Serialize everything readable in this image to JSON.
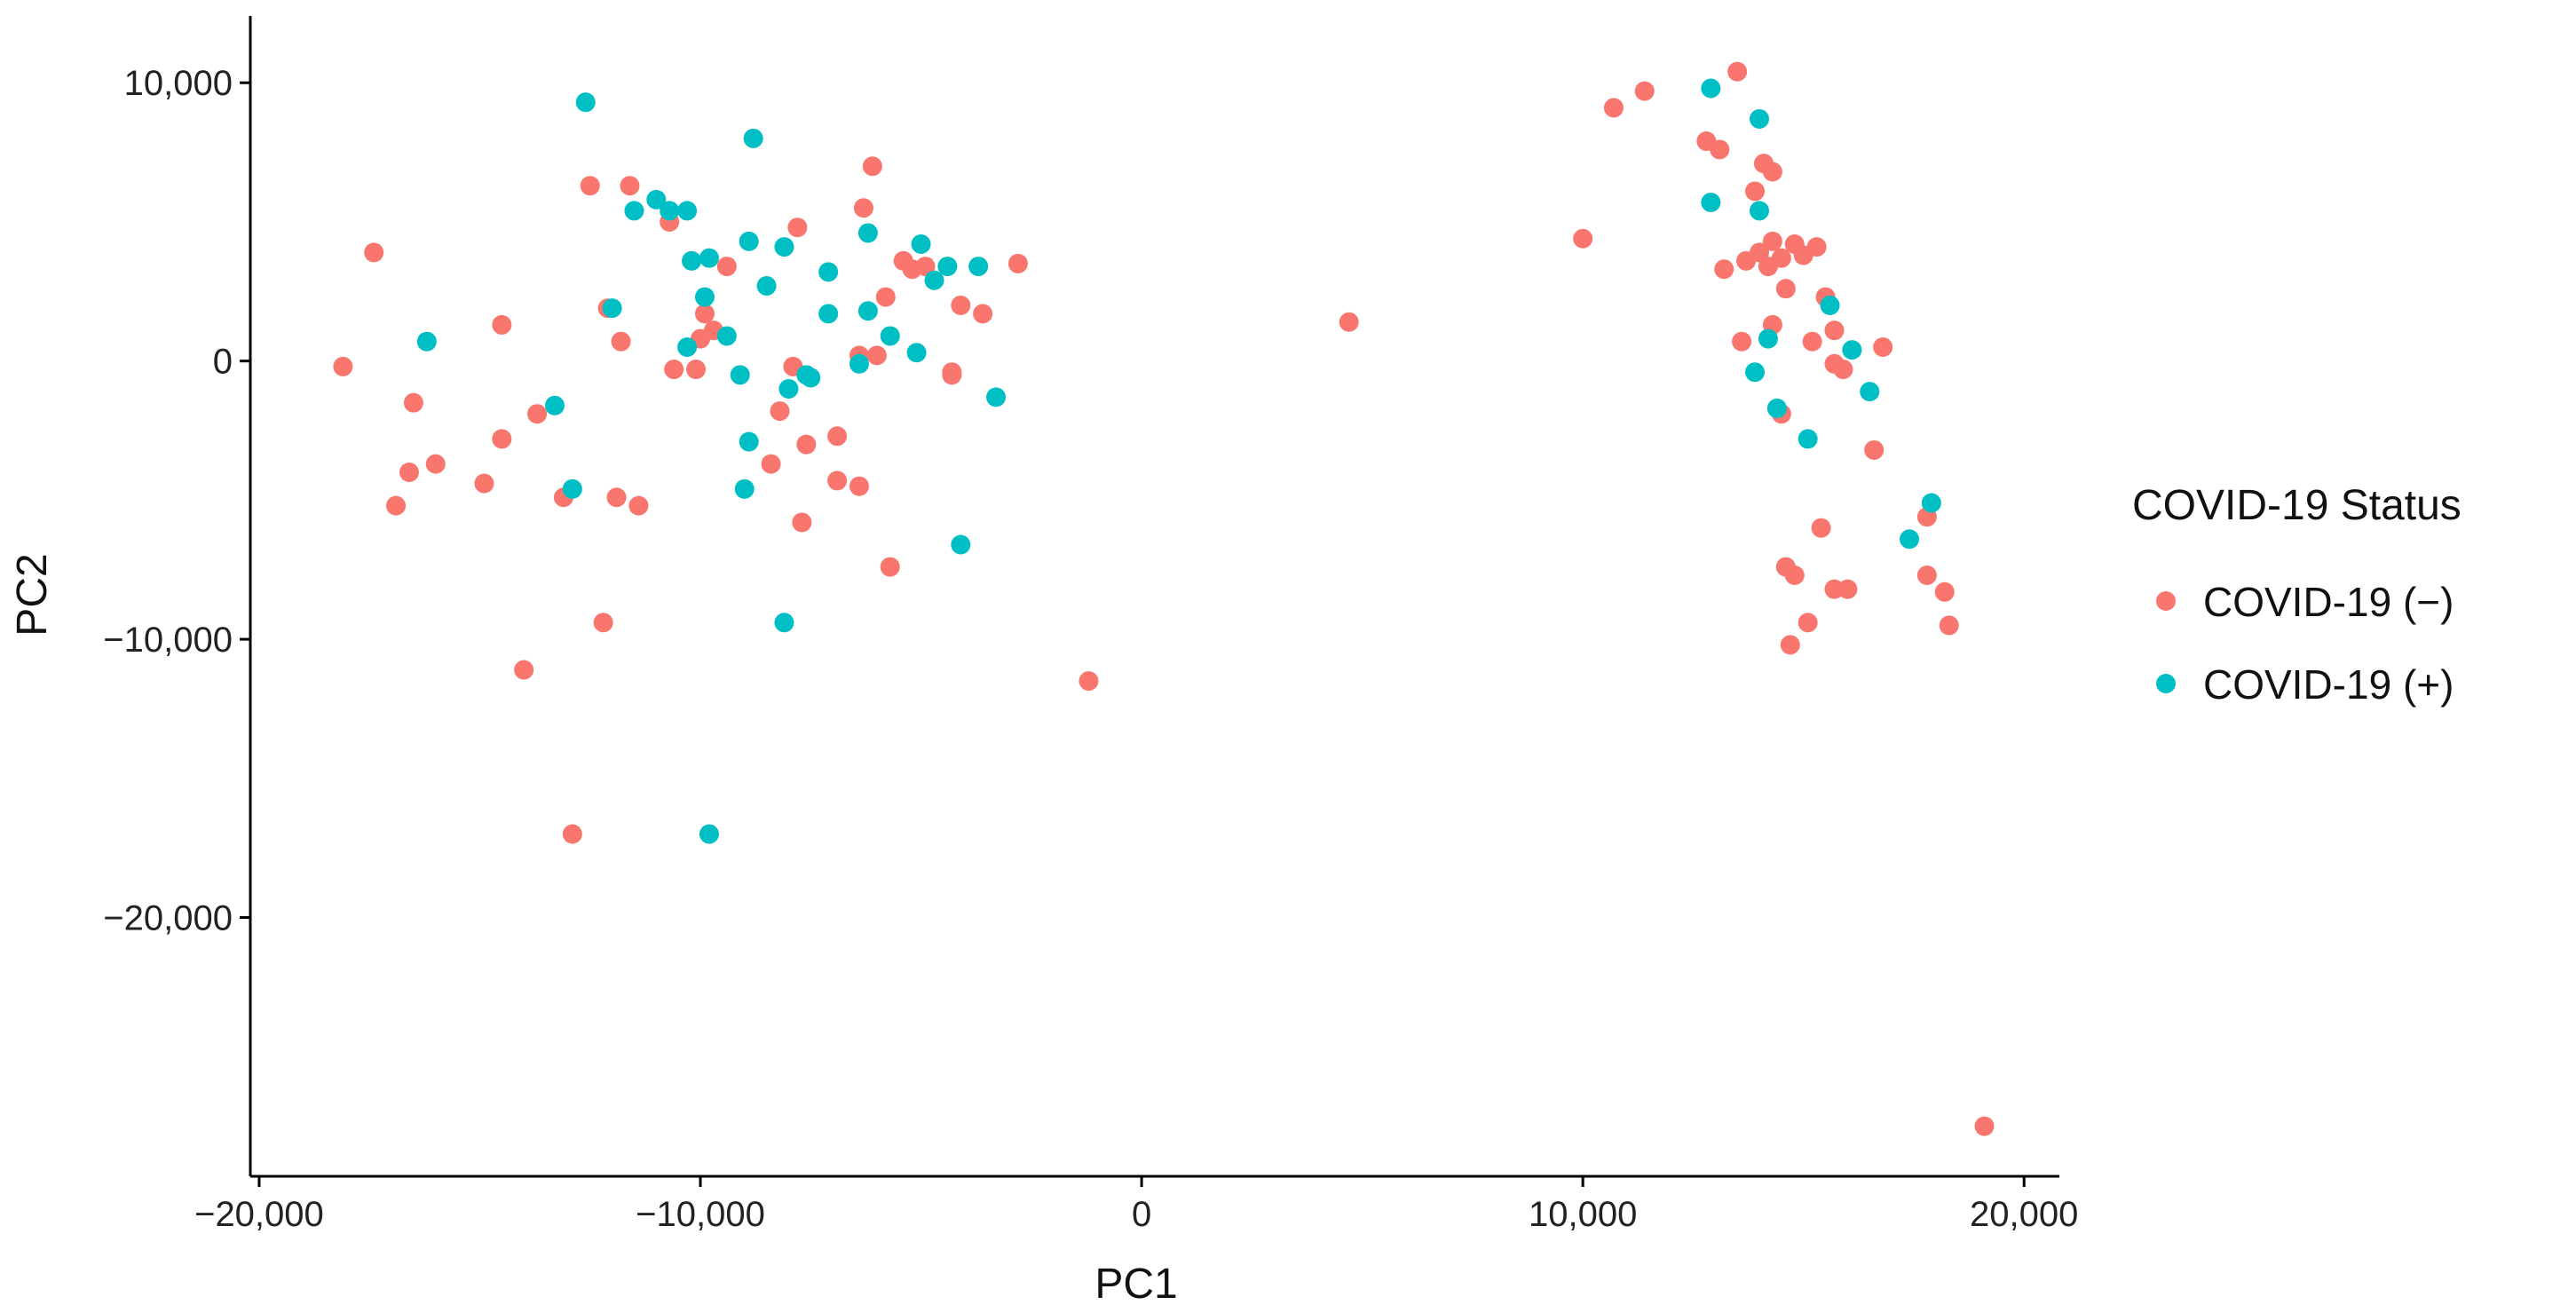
{
  "chart_data": {
    "type": "scatter",
    "xlabel": "PC1",
    "ylabel": "PC2",
    "xlim": [
      -20200,
      20800
    ],
    "ylim": [
      -29300,
      12400
    ],
    "x_ticks": [
      -20000,
      -10000,
      0,
      10000,
      20000
    ],
    "x_tick_labels": [
      "−20,000",
      "−10,000",
      "0",
      "10,000",
      "20,000"
    ],
    "y_ticks": [
      10000,
      0,
      -10000,
      -20000
    ],
    "y_tick_labels": [
      "10,000",
      "0",
      "−10,000",
      "−20,000"
    ],
    "grid": false,
    "legend": {
      "title": "COVID-19 Status",
      "position": "right"
    },
    "series": [
      {
        "name": "COVID-19 (−)",
        "color": "#F8766D",
        "points": [
          [
            -18100,
            -200
          ],
          [
            -17400,
            3900
          ],
          [
            -16500,
            -1500
          ],
          [
            -16900,
            -5200
          ],
          [
            -16600,
            -4000
          ],
          [
            -16000,
            -3700
          ],
          [
            -14900,
            -4400
          ],
          [
            -14500,
            1300
          ],
          [
            -14500,
            -2800
          ],
          [
            -14000,
            -11100
          ],
          [
            -13700,
            -1900
          ],
          [
            -13100,
            -4900
          ],
          [
            -12900,
            -17000
          ],
          [
            -12500,
            6300
          ],
          [
            -12200,
            -9400
          ],
          [
            -12100,
            1900
          ],
          [
            -11900,
            -4900
          ],
          [
            -11800,
            700
          ],
          [
            -11600,
            6300
          ],
          [
            -11400,
            -5200
          ],
          [
            -10700,
            5000
          ],
          [
            -10600,
            -300
          ],
          [
            -10100,
            -300
          ],
          [
            -10000,
            800
          ],
          [
            -9900,
            1700
          ],
          [
            -9700,
            1100
          ],
          [
            -9400,
            3400
          ],
          [
            -8400,
            -3700
          ],
          [
            -8200,
            -1800
          ],
          [
            -7900,
            -200
          ],
          [
            -7800,
            4800
          ],
          [
            -7700,
            -5800
          ],
          [
            -7600,
            -3000
          ],
          [
            -6900,
            -2700
          ],
          [
            -6900,
            -4300
          ],
          [
            -6400,
            -4500
          ],
          [
            -6400,
            200
          ],
          [
            -6300,
            5500
          ],
          [
            -6100,
            7000
          ],
          [
            -6000,
            200
          ],
          [
            -5800,
            2300
          ],
          [
            -5700,
            -7400
          ],
          [
            -5400,
            3600
          ],
          [
            -5200,
            3300
          ],
          [
            -4900,
            3400
          ],
          [
            -4300,
            -400
          ],
          [
            -4300,
            -500
          ],
          [
            -4100,
            2000
          ],
          [
            -3600,
            1700
          ],
          [
            -2800,
            3500
          ],
          [
            -1200,
            -11500
          ],
          [
            4700,
            1400
          ],
          [
            10000,
            4400
          ],
          [
            10700,
            9100
          ],
          [
            11400,
            9700
          ],
          [
            12800,
            7900
          ],
          [
            13100,
            7600
          ],
          [
            13200,
            3300
          ],
          [
            13500,
            10400
          ],
          [
            13600,
            700
          ],
          [
            13700,
            3600
          ],
          [
            13900,
            6100
          ],
          [
            14000,
            3900
          ],
          [
            14100,
            7100
          ],
          [
            14200,
            3400
          ],
          [
            14300,
            4300
          ],
          [
            14300,
            1300
          ],
          [
            14300,
            6800
          ],
          [
            14500,
            3700
          ],
          [
            14500,
            -1900
          ],
          [
            14600,
            2600
          ],
          [
            14600,
            -7400
          ],
          [
            14700,
            -10200
          ],
          [
            14800,
            4200
          ],
          [
            14800,
            -7700
          ],
          [
            15000,
            3800
          ],
          [
            15100,
            -9400
          ],
          [
            15200,
            700
          ],
          [
            15300,
            4100
          ],
          [
            15400,
            -6000
          ],
          [
            15500,
            2300
          ],
          [
            15700,
            1100
          ],
          [
            15700,
            -8200
          ],
          [
            15700,
            -100
          ],
          [
            15900,
            -300
          ],
          [
            16000,
            -8200
          ],
          [
            16600,
            -3200
          ],
          [
            16800,
            500
          ],
          [
            17800,
            -5600
          ],
          [
            17800,
            -7700
          ],
          [
            18200,
            -8300
          ],
          [
            18300,
            -9500
          ],
          [
            19100,
            -27500
          ]
        ]
      },
      {
        "name": "COVID-19 (+)",
        "color": "#00BFC4",
        "points": [
          [
            -16200,
            700
          ],
          [
            -13300,
            -1600
          ],
          [
            -12900,
            -4600
          ],
          [
            -12600,
            9300
          ],
          [
            -12000,
            1900
          ],
          [
            -11500,
            5400
          ],
          [
            -11000,
            5800
          ],
          [
            -10700,
            5400
          ],
          [
            -10300,
            5400
          ],
          [
            -10300,
            500
          ],
          [
            -10200,
            3600
          ],
          [
            -9900,
            2300
          ],
          [
            -9800,
            3700
          ],
          [
            -9800,
            -17000
          ],
          [
            -9400,
            900
          ],
          [
            -9100,
            -500
          ],
          [
            -9000,
            -4600
          ],
          [
            -8900,
            -2900
          ],
          [
            -8900,
            4300
          ],
          [
            -8800,
            8000
          ],
          [
            -8500,
            2700
          ],
          [
            -8100,
            4100
          ],
          [
            -8100,
            -9400
          ],
          [
            -8000,
            -1000
          ],
          [
            -7600,
            -500
          ],
          [
            -7500,
            -600
          ],
          [
            -7100,
            3200
          ],
          [
            -7100,
            1700
          ],
          [
            -6400,
            -100
          ],
          [
            -6200,
            1800
          ],
          [
            -6200,
            4600
          ],
          [
            -5700,
            900
          ],
          [
            -5100,
            300
          ],
          [
            -5000,
            4200
          ],
          [
            -4700,
            2900
          ],
          [
            -4400,
            3400
          ],
          [
            -4100,
            -6600
          ],
          [
            -3700,
            3400
          ],
          [
            -3300,
            -1300
          ],
          [
            12900,
            9800
          ],
          [
            12900,
            5700
          ],
          [
            14000,
            8700
          ],
          [
            14000,
            5400
          ],
          [
            13900,
            -400
          ],
          [
            14200,
            800
          ],
          [
            14400,
            -1700
          ],
          [
            15100,
            -2800
          ],
          [
            15600,
            2000
          ],
          [
            16100,
            400
          ],
          [
            16500,
            -1100
          ],
          [
            17400,
            -6400
          ],
          [
            17900,
            -5100
          ]
        ]
      }
    ]
  }
}
